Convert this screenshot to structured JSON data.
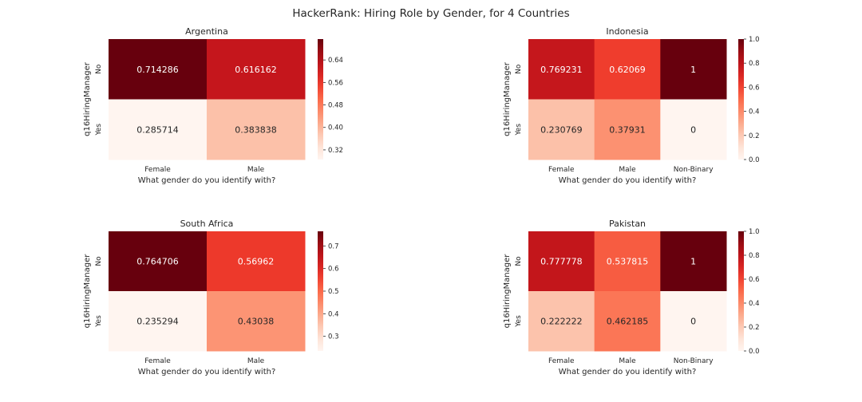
{
  "figure": {
    "title": "HackerRank: Hiring Role by Gender, for 4 Countries"
  },
  "colors": {
    "scale": [
      "#fff5f0",
      "#fee0d2",
      "#fcbba1",
      "#fc9272",
      "#fb6a4a",
      "#ef3b2c",
      "#cb181d",
      "#a50f15",
      "#67000d"
    ],
    "text_on_dark": "#ffffff",
    "text_on_light": "#262626"
  },
  "chart_data": [
    {
      "type": "heatmap",
      "title": "Argentina",
      "xlabel": "What gender do you identify with?",
      "ylabel": "q16HiringManager",
      "x_categories": [
        "Female",
        "Male"
      ],
      "y_categories": [
        "No",
        "Yes"
      ],
      "values": [
        [
          0.714286,
          0.616162
        ],
        [
          0.285714,
          0.383838
        ]
      ],
      "labels": [
        [
          "0.714286",
          "0.616162"
        ],
        [
          "0.285714",
          "0.383838"
        ]
      ],
      "vmin": 0.285714,
      "vmax": 0.714286,
      "colorbar_ticks": [
        0.32,
        0.4,
        0.48,
        0.56,
        0.64
      ],
      "colorbar_tick_labels": [
        "0.32",
        "0.40",
        "0.48",
        "0.56",
        "0.64"
      ]
    },
    {
      "type": "heatmap",
      "title": "Indonesia",
      "xlabel": "What gender do you identify with?",
      "ylabel": "q16HiringManager",
      "x_categories": [
        "Female",
        "Male",
        "Non-Binary"
      ],
      "y_categories": [
        "No",
        "Yes"
      ],
      "values": [
        [
          0.769231,
          0.62069,
          1
        ],
        [
          0.230769,
          0.37931,
          0
        ]
      ],
      "labels": [
        [
          "0.769231",
          "0.62069",
          "1"
        ],
        [
          "0.230769",
          "0.37931",
          "0"
        ]
      ],
      "vmin": 0,
      "vmax": 1,
      "colorbar_ticks": [
        0.0,
        0.2,
        0.4,
        0.6,
        0.8,
        1.0
      ],
      "colorbar_tick_labels": [
        "0.0",
        "0.2",
        "0.4",
        "0.6",
        "0.8",
        "1.0"
      ]
    },
    {
      "type": "heatmap",
      "title": "South Africa",
      "xlabel": "What gender do you identify with?",
      "ylabel": "q16HiringManager",
      "x_categories": [
        "Female",
        "Male"
      ],
      "y_categories": [
        "No",
        "Yes"
      ],
      "values": [
        [
          0.764706,
          0.56962
        ],
        [
          0.235294,
          0.43038
        ]
      ],
      "labels": [
        [
          "0.764706",
          "0.56962"
        ],
        [
          "0.235294",
          "0.43038"
        ]
      ],
      "vmin": 0.235294,
      "vmax": 0.764706,
      "colorbar_ticks": [
        0.3,
        0.4,
        0.5,
        0.6,
        0.7
      ],
      "colorbar_tick_labels": [
        "0.3",
        "0.4",
        "0.5",
        "0.6",
        "0.7"
      ]
    },
    {
      "type": "heatmap",
      "title": "Pakistan",
      "xlabel": "What gender do you identify with?",
      "ylabel": "q16HiringManager",
      "x_categories": [
        "Female",
        "Male",
        "Non-Binary"
      ],
      "y_categories": [
        "No",
        "Yes"
      ],
      "values": [
        [
          0.777778,
          0.537815,
          1
        ],
        [
          0.222222,
          0.462185,
          0
        ]
      ],
      "labels": [
        [
          "0.777778",
          "0.537815",
          "1"
        ],
        [
          "0.222222",
          "0.462185",
          "0"
        ]
      ],
      "vmin": 0,
      "vmax": 1,
      "colorbar_ticks": [
        0.0,
        0.2,
        0.4,
        0.6,
        0.8,
        1.0
      ],
      "colorbar_tick_labels": [
        "0.0",
        "0.2",
        "0.4",
        "0.6",
        "0.8",
        "1.0"
      ]
    }
  ]
}
